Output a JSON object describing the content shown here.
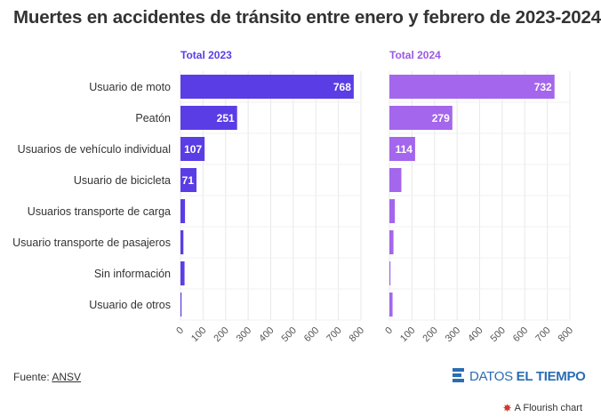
{
  "title": "Muertes en accidentes de tránsito entre enero y febrero de 2023-2024",
  "footer": {
    "source_label": "Fuente:",
    "source_link": "ANSV",
    "brand_prefix": "DATOS",
    "brand_name": "EL TIEMPO",
    "flourish_label": "A Flourish chart"
  },
  "colors": {
    "series_2023": "#5b3de6",
    "series_2024": "#a466ec",
    "label_2023": "#5b3de6",
    "label_2024": "#9b59e4",
    "brand": "#2a6db3"
  },
  "chart_data": {
    "type": "bar",
    "orientation": "horizontal",
    "categories": [
      "Usuario de moto",
      "Peatón",
      "Usuarios de vehículo individual",
      "Usuario de bicicleta",
      "Usuarios transporte de carga",
      "Usuario transporte de pasajeros",
      "Sin información",
      "Usuario de otros"
    ],
    "series": [
      {
        "name": "Total 2023",
        "values": [
          768,
          251,
          107,
          71,
          20,
          13,
          18,
          4
        ],
        "labels": [
          "768",
          "251",
          "107",
          "71",
          "",
          "",
          "",
          ""
        ]
      },
      {
        "name": "Total 2024",
        "values": [
          732,
          279,
          114,
          53,
          24,
          18,
          3,
          14
        ],
        "labels": [
          "732",
          "279",
          "114",
          "",
          "",
          "",
          "",
          ""
        ]
      }
    ],
    "xlim": [
      0,
      800
    ],
    "xticks": [
      0,
      100,
      200,
      300,
      400,
      500,
      600,
      700,
      800
    ],
    "grid": true
  }
}
